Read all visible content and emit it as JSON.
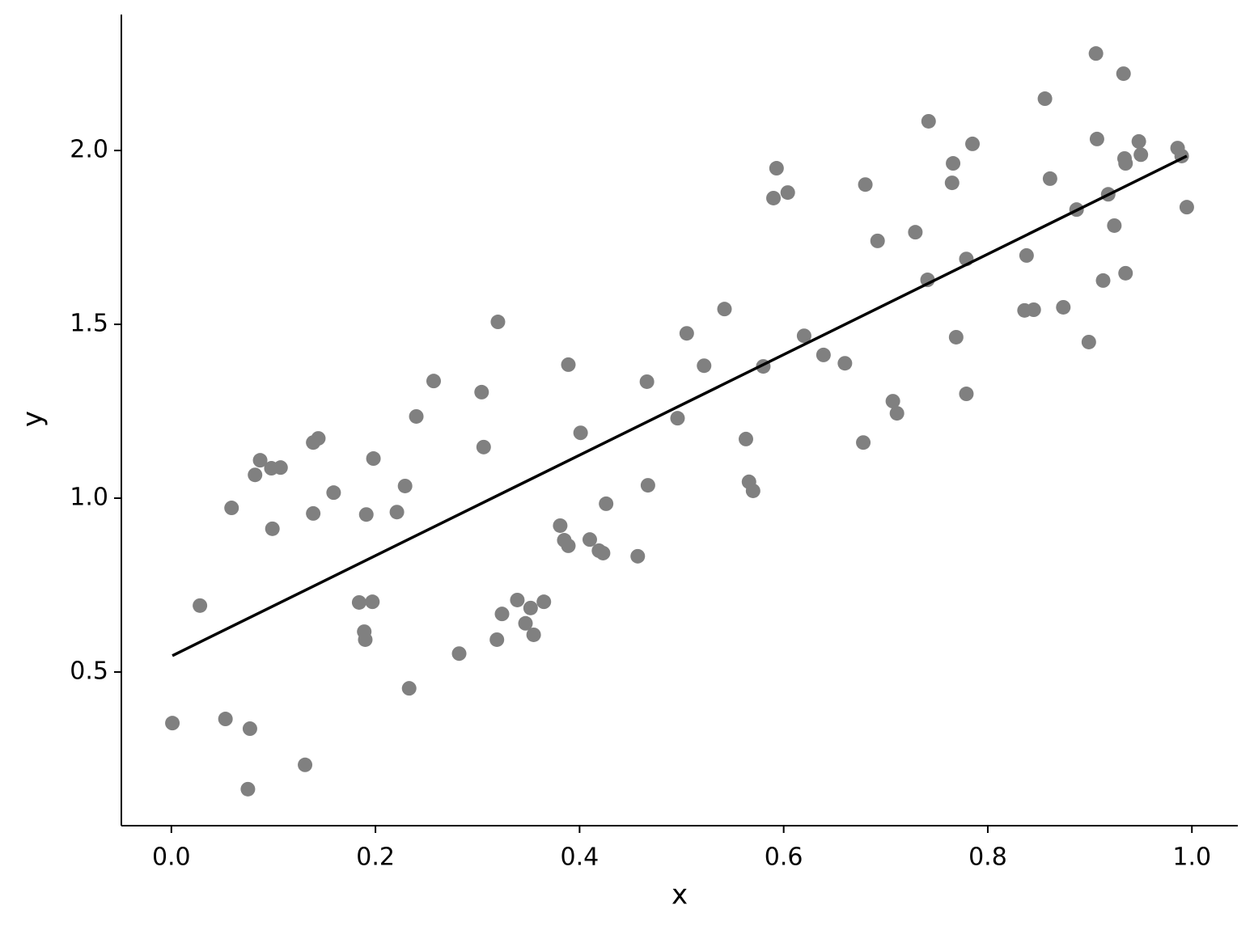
{
  "chart_data": {
    "type": "scatter",
    "x_label": "x",
    "y_label": "y",
    "x": [
      0.001,
      0.028,
      0.053,
      0.059,
      0.077,
      0.075,
      0.082,
      0.087,
      0.098,
      0.107,
      0.099,
      0.131,
      0.139,
      0.144,
      0.139,
      0.159,
      0.184,
      0.197,
      0.189,
      0.19,
      0.191,
      0.198,
      0.221,
      0.229,
      0.233,
      0.24,
      0.257,
      0.282,
      0.304,
      0.306,
      0.32,
      0.319,
      0.324,
      0.339,
      0.347,
      0.352,
      0.355,
      0.365,
      0.381,
      0.385,
      0.389,
      0.389,
      0.401,
      0.41,
      0.419,
      0.423,
      0.426,
      0.457,
      0.466,
      0.467,
      0.496,
      0.505,
      0.522,
      0.542,
      0.563,
      0.566,
      0.57,
      0.58,
      0.59,
      0.593,
      0.604,
      0.62,
      0.639,
      0.66,
      0.678,
      0.68,
      0.692,
      0.707,
      0.711,
      0.729,
      0.741,
      0.742,
      0.765,
      0.766,
      0.769,
      0.779,
      0.779,
      0.785,
      0.836,
      0.838,
      0.845,
      0.856,
      0.861,
      0.874,
      0.887,
      0.899,
      0.906,
      0.907,
      0.913,
      0.918,
      0.924,
      0.933,
      0.934,
      0.935,
      0.935,
      0.948,
      0.95,
      0.986,
      0.99,
      0.995
    ],
    "y": [
      0.353,
      0.691,
      0.365,
      0.972,
      0.337,
      0.163,
      1.067,
      1.109,
      1.086,
      1.088,
      0.912,
      0.233,
      1.16,
      1.172,
      0.956,
      1.016,
      0.7,
      0.702,
      0.616,
      0.593,
      0.953,
      1.114,
      0.96,
      1.035,
      0.453,
      1.235,
      1.337,
      0.553,
      1.305,
      1.147,
      1.507,
      0.593,
      0.667,
      0.707,
      0.64,
      0.684,
      0.607,
      0.702,
      0.921,
      0.879,
      0.863,
      1.384,
      1.188,
      0.881,
      0.849,
      0.842,
      0.984,
      0.833,
      1.335,
      1.037,
      1.23,
      1.474,
      1.381,
      1.544,
      1.17,
      1.047,
      1.021,
      1.379,
      1.863,
      1.949,
      1.879,
      1.467,
      1.412,
      1.388,
      1.16,
      1.902,
      1.74,
      1.279,
      1.244,
      1.765,
      1.628,
      2.084,
      1.907,
      1.963,
      1.463,
      1.688,
      1.3,
      2.019,
      1.54,
      1.698,
      1.542,
      2.149,
      1.919,
      1.549,
      1.83,
      1.449,
      2.279,
      2.033,
      1.626,
      1.874,
      1.784,
      2.221,
      1.977,
      1.963,
      1.647,
      2.026,
      1.988,
      2.007,
      1.984,
      1.837
    ],
    "color": "#808080",
    "line": {
      "x": [
        0.001,
        0.995
      ],
      "y": [
        0.547,
        1.984
      ],
      "color": "#000000"
    },
    "xlim": [
      -0.049,
      1.045
    ],
    "ylim": [
      0.058,
      2.391
    ],
    "xticks": [
      {
        "value": 0,
        "label": "0.0"
      },
      {
        "value": 0.2,
        "label": "0.2"
      },
      {
        "value": 0.4,
        "label": "0.4"
      },
      {
        "value": 0.6,
        "label": "0.6"
      },
      {
        "value": 0.8,
        "label": "0.8"
      },
      {
        "value": 1,
        "label": "1.0"
      }
    ],
    "yticks": [
      0.5,
      {
        "value": 1,
        "label": "1.0"
      },
      1.5,
      {
        "value": 2,
        "label": "2.0"
      }
    ],
    "grid": false
  }
}
